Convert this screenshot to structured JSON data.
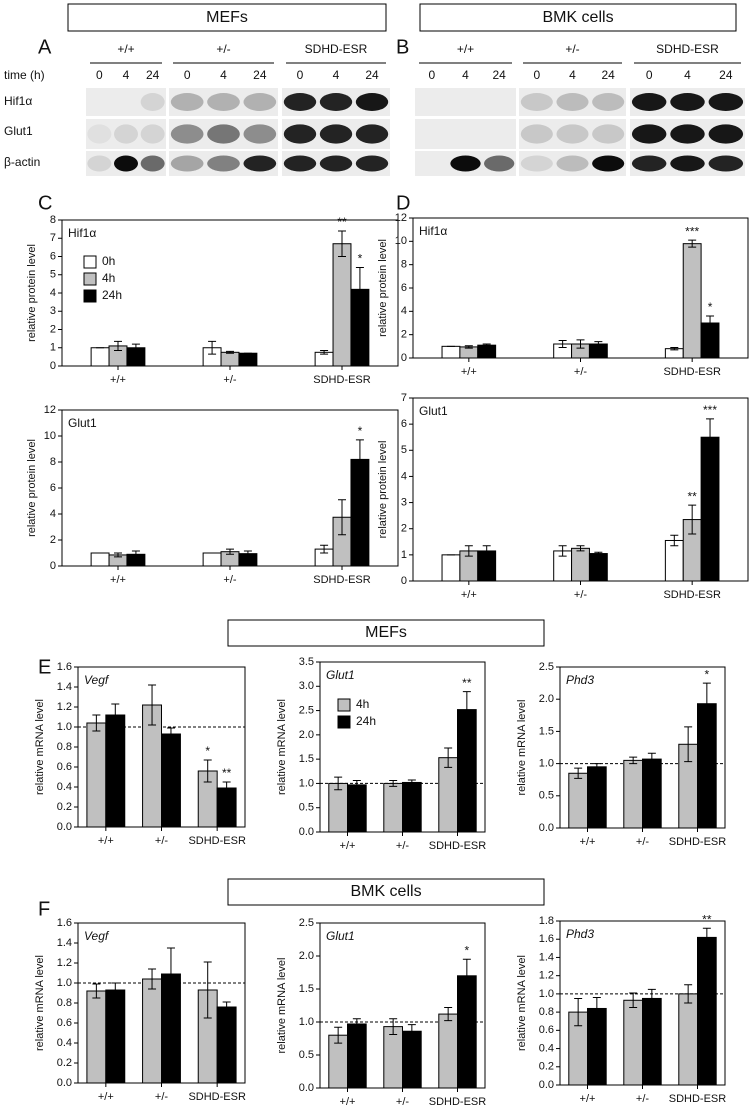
{
  "panels": [
    "A",
    "B",
    "C",
    "D",
    "E",
    "F"
  ],
  "headers": [
    "MEFs",
    "BMK cells",
    "MEFs",
    "BMK cells"
  ],
  "blots": [
    {
      "genotypes": [
        "+/+",
        "+/-",
        "SDHD-ESR"
      ],
      "time_label": "time (h)",
      "times": [
        "0",
        "4",
        "24"
      ],
      "rows": [
        "Hif1α",
        "Glut1",
        "β-actin"
      ]
    },
    {
      "genotypes": [
        "+/+",
        "+/-",
        "SDHD-ESR"
      ],
      "times": [
        "0",
        "4",
        "24"
      ]
    }
  ],
  "chart_data": [
    {
      "type": "bar",
      "title": "Hif1α",
      "ylabel": "relative protein level",
      "categories": [
        "+/+",
        "+/-",
        "SDHD-ESR"
      ],
      "ylim": [
        0,
        8
      ],
      "yticks": [
        0,
        1,
        2,
        3,
        4,
        5,
        6,
        7,
        8
      ],
      "legend": "upper left",
      "series": [
        {
          "name": "0h",
          "color": "#ffffff",
          "values": [
            1,
            1,
            0.75
          ],
          "errors": [
            0,
            0.35,
            0.1
          ],
          "stars": [
            null,
            null,
            null
          ]
        },
        {
          "name": "4h",
          "color": "#c0c0c0",
          "values": [
            1.1,
            0.75,
            6.7
          ],
          "errors": [
            0.25,
            0.05,
            0.7
          ],
          "stars": [
            null,
            null,
            "**"
          ]
        },
        {
          "name": "24h",
          "color": "#000000",
          "values": [
            1,
            0.7,
            4.2
          ],
          "errors": [
            0.2,
            0,
            1.2
          ],
          "stars": [
            null,
            null,
            "*"
          ]
        }
      ]
    },
    {
      "type": "bar",
      "title": "Glut1",
      "ylabel": "relative protein level",
      "categories": [
        "+/+",
        "+/-",
        "SDHD-ESR"
      ],
      "ylim": [
        0,
        12
      ],
      "yticks": [
        0,
        2,
        4,
        6,
        8,
        10,
        12
      ],
      "series": [
        {
          "color": "#ffffff",
          "values": [
            1,
            1,
            1.3
          ],
          "errors": [
            0,
            0,
            0.3
          ],
          "stars": [
            null,
            null,
            null
          ]
        },
        {
          "color": "#c0c0c0",
          "values": [
            0.85,
            1.1,
            3.75
          ],
          "errors": [
            0.15,
            0.2,
            1.35
          ],
          "stars": [
            null,
            null,
            null
          ]
        },
        {
          "color": "#000000",
          "values": [
            0.9,
            0.95,
            8.2
          ],
          "errors": [
            0.25,
            0.2,
            1.5
          ],
          "stars": [
            null,
            null,
            "*"
          ]
        }
      ]
    },
    {
      "type": "bar",
      "title": "Hif1α",
      "ylabel": "relative protein level",
      "categories": [
        "+/+",
        "+/-",
        "SDHD-ESR"
      ],
      "ylim": [
        0,
        12
      ],
      "yticks": [
        0,
        2,
        4,
        6,
        8,
        10,
        12
      ],
      "series": [
        {
          "color": "#ffffff",
          "values": [
            1,
            1.2,
            0.8
          ],
          "errors": [
            0,
            0.3,
            0.1
          ],
          "stars": [
            null,
            null,
            null
          ]
        },
        {
          "color": "#c0c0c0",
          "values": [
            0.95,
            1.2,
            9.8
          ],
          "errors": [
            0.1,
            0.35,
            0.3
          ],
          "stars": [
            null,
            null,
            "***"
          ]
        },
        {
          "color": "#000000",
          "values": [
            1.1,
            1.2,
            3
          ],
          "errors": [
            0.1,
            0.2,
            0.6
          ],
          "stars": [
            null,
            null,
            "*"
          ]
        }
      ]
    },
    {
      "type": "bar",
      "title": "Glut1",
      "ylabel": "relative protein level",
      "categories": [
        "+/+",
        "+/-",
        "SDHD-ESR"
      ],
      "ylim": [
        0,
        7
      ],
      "yticks": [
        0,
        1,
        2,
        3,
        4,
        5,
        6,
        7
      ],
      "series": [
        {
          "color": "#ffffff",
          "values": [
            1,
            1.15,
            1.55
          ],
          "errors": [
            0,
            0.2,
            0.2
          ],
          "stars": [
            null,
            null,
            null
          ]
        },
        {
          "color": "#c0c0c0",
          "values": [
            1.15,
            1.25,
            2.35
          ],
          "errors": [
            0.2,
            0.1,
            0.55
          ],
          "stars": [
            null,
            null,
            "**"
          ]
        },
        {
          "color": "#000000",
          "values": [
            1.15,
            1.05,
            5.5
          ],
          "errors": [
            0.2,
            0.05,
            0.7
          ],
          "stars": [
            null,
            null,
            "***"
          ]
        }
      ]
    },
    {
      "type": "bar",
      "title": "Vegf",
      "title_italic": true,
      "ylabel": "relative mRNA level",
      "categories": [
        "+/+",
        "+/-",
        "SDHD-ESR"
      ],
      "ylim": [
        0,
        1.6
      ],
      "refline": 1,
      "yticks": [
        {
          "value": 0,
          "label": "0.0"
        },
        {
          "value": 0.2,
          "label": "0.2"
        },
        {
          "value": 0.4,
          "label": "0.4"
        },
        {
          "value": 0.6,
          "label": "0.6"
        },
        {
          "value": 0.8,
          "label": "0.8"
        },
        {
          "value": 1,
          "label": "1.0"
        },
        {
          "value": 1.2,
          "label": "1.2"
        },
        {
          "value": 1.4,
          "label": "1.4"
        },
        {
          "value": 1.6,
          "label": "1.6"
        }
      ],
      "series": [
        {
          "color": "#c0c0c0",
          "values": [
            1.04,
            1.22,
            0.56
          ],
          "errors": [
            0.08,
            0.2,
            0.11
          ],
          "stars": [
            null,
            null,
            "*"
          ]
        },
        {
          "color": "#000000",
          "values": [
            1.12,
            0.93,
            0.39
          ],
          "errors": [
            0.11,
            0.06,
            0.06
          ],
          "stars": [
            null,
            null,
            "**"
          ]
        }
      ]
    },
    {
      "type": "bar",
      "title": "Glut1",
      "title_italic": true,
      "ylabel": "relative mRNA level",
      "categories": [
        "+/+",
        "+/-",
        "SDHD-ESR"
      ],
      "ylim": [
        0,
        3.5
      ],
      "refline": 1,
      "legend": "upper left",
      "yticks": [
        {
          "value": 0,
          "label": "0.0"
        },
        {
          "value": 0.5,
          "label": "0.5"
        },
        {
          "value": 1,
          "label": "1.0"
        },
        {
          "value": 1.5,
          "label": "1.5"
        },
        {
          "value": 2,
          "label": "2.0"
        },
        {
          "value": 2.5,
          "label": "2.5"
        },
        {
          "value": 3,
          "label": "3.0"
        },
        {
          "value": 3.5,
          "label": "3.5"
        }
      ],
      "series": [
        {
          "name": "4h",
          "color": "#c0c0c0",
          "values": [
            1,
            1,
            1.53
          ],
          "errors": [
            0.13,
            0.06,
            0.2
          ],
          "stars": [
            null,
            null,
            null
          ]
        },
        {
          "name": "24h",
          "color": "#000000",
          "values": [
            0.97,
            1.02,
            2.52
          ],
          "errors": [
            0.09,
            0.05,
            0.37
          ],
          "stars": [
            null,
            null,
            "**"
          ]
        }
      ]
    },
    {
      "type": "bar",
      "title": "Phd3",
      "title_italic": true,
      "ylabel": "relative mRNA level",
      "categories": [
        "+/+",
        "+/-",
        "SDHD-ESR"
      ],
      "ylim": [
        0,
        2.5
      ],
      "refline": 1,
      "yticks": [
        {
          "value": 0,
          "label": "0.0"
        },
        {
          "value": 0.5,
          "label": "0.5"
        },
        {
          "value": 1,
          "label": "1.0"
        },
        {
          "value": 1.5,
          "label": "1.5"
        },
        {
          "value": 2,
          "label": "2.0"
        },
        {
          "value": 2.5,
          "label": "2.5"
        }
      ],
      "series": [
        {
          "color": "#c0c0c0",
          "values": [
            0.85,
            1.05,
            1.3
          ],
          "errors": [
            0.08,
            0.05,
            0.27
          ],
          "stars": [
            null,
            null,
            null
          ]
        },
        {
          "color": "#000000",
          "values": [
            0.95,
            1.07,
            1.93
          ],
          "errors": [
            0.05,
            0.09,
            0.32
          ],
          "stars": [
            null,
            null,
            "*"
          ]
        }
      ]
    },
    {
      "type": "bar",
      "title": "Vegf",
      "title_italic": true,
      "ylabel": "relative mRNA level",
      "categories": [
        "+/+",
        "+/-",
        "SDHD-ESR"
      ],
      "ylim": [
        0,
        1.6
      ],
      "refline": 1,
      "yticks": [
        {
          "value": 0,
          "label": "0.0"
        },
        {
          "value": 0.2,
          "label": "0.2"
        },
        {
          "value": 0.4,
          "label": "0.4"
        },
        {
          "value": 0.6,
          "label": "0.6"
        },
        {
          "value": 0.8,
          "label": "0.8"
        },
        {
          "value": 1,
          "label": "1.0"
        },
        {
          "value": 1.2,
          "label": "1.2"
        },
        {
          "value": 1.4,
          "label": "1.4"
        },
        {
          "value": 1.6,
          "label": "1.6"
        }
      ],
      "series": [
        {
          "color": "#c0c0c0",
          "values": [
            0.92,
            1.04,
            0.93
          ],
          "errors": [
            0.07,
            0.1,
            0.28
          ],
          "stars": [
            null,
            null,
            null
          ]
        },
        {
          "color": "#000000",
          "values": [
            0.93,
            1.09,
            0.76
          ],
          "errors": [
            0.07,
            0.26,
            0.05
          ],
          "stars": [
            null,
            null,
            null
          ]
        }
      ]
    },
    {
      "type": "bar",
      "title": "Glut1",
      "title_italic": true,
      "ylabel": "relative mRNA level",
      "categories": [
        "+/+",
        "+/-",
        "SDHD-ESR"
      ],
      "ylim": [
        0,
        2.5
      ],
      "refline": 1,
      "yticks": [
        {
          "value": 0,
          "label": "0.0"
        },
        {
          "value": 0.5,
          "label": "0.5"
        },
        {
          "value": 1,
          "label": "1.0"
        },
        {
          "value": 1.5,
          "label": "1.5"
        },
        {
          "value": 2,
          "label": "2.0"
        },
        {
          "value": 2.5,
          "label": "2.5"
        }
      ],
      "series": [
        {
          "color": "#c0c0c0",
          "values": [
            0.8,
            0.93,
            1.12
          ],
          "errors": [
            0.12,
            0.12,
            0.1
          ],
          "stars": [
            null,
            null,
            null
          ]
        },
        {
          "color": "#000000",
          "values": [
            0.97,
            0.86,
            1.7
          ],
          "errors": [
            0.08,
            0.1,
            0.25
          ],
          "stars": [
            null,
            null,
            "*"
          ]
        }
      ]
    },
    {
      "type": "bar",
      "title": "Phd3",
      "title_italic": true,
      "ylabel": "relative mRNA level",
      "categories": [
        "+/+",
        "+/-",
        "SDHD-ESR"
      ],
      "ylim": [
        0,
        1.8
      ],
      "refline": 1,
      "yticks": [
        {
          "value": 0,
          "label": "0.0"
        },
        {
          "value": 0.2,
          "label": "0.2"
        },
        {
          "value": 0.4,
          "label": "0.4"
        },
        {
          "value": 0.6,
          "label": "0.6"
        },
        {
          "value": 0.8,
          "label": "0.8"
        },
        {
          "value": 1,
          "label": "1.0"
        },
        {
          "value": 1.2,
          "label": "1.2"
        },
        {
          "value": 1.4,
          "label": "1.4"
        },
        {
          "value": 1.6,
          "label": "1.6"
        },
        {
          "value": 1.8,
          "label": "1.8"
        }
      ],
      "series": [
        {
          "color": "#c0c0c0",
          "values": [
            0.8,
            0.93,
            1
          ],
          "errors": [
            0.15,
            0.08,
            0.1
          ],
          "stars": [
            null,
            null,
            null
          ]
        },
        {
          "color": "#000000",
          "values": [
            0.84,
            0.95,
            1.62
          ],
          "errors": [
            0.12,
            0.1,
            0.1
          ],
          "stars": [
            null,
            null,
            "**"
          ]
        }
      ]
    }
  ]
}
